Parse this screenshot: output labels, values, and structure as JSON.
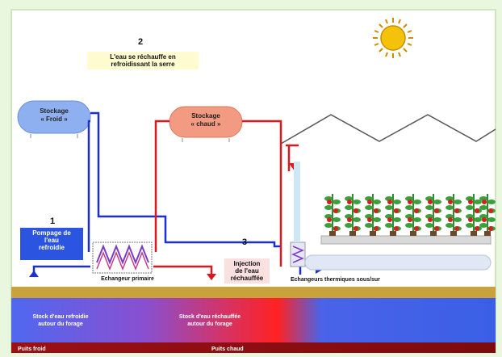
{
  "steps": {
    "one": {
      "number": "1",
      "text_line1": "Pompage de",
      "text_line2": "l'eau",
      "text_line3": "refroidie"
    },
    "two": {
      "number": "2",
      "text_line1": "L'eau se réchauffe en",
      "text_line2": "refroidissant  la serre"
    },
    "three": {
      "number": "3",
      "text_line1": "Injection",
      "text_line2": "de l'eau",
      "text_line3": "réchauffée"
    }
  },
  "tanks": {
    "cold": {
      "line1": "Stockage",
      "line2": "« Froid »"
    },
    "hot": {
      "line1": "Stockage",
      "line2": "« chaud »"
    }
  },
  "labels": {
    "primary_exchanger": "Echangeur primaire",
    "solar_exchangers": "Echangeurs thermiques sous/sur",
    "cold_stock_line1": "Stock d'eau refroidie",
    "cold_stock_line2": "autour du forage",
    "hot_stock_line1": "Stock d'eau réchauffée",
    "hot_stock_line2": "autour du forage",
    "cold_well": "Puits froid",
    "hot_well": "Puits chaud"
  },
  "colors": {
    "cold_pipe": "#1b2fd6",
    "hot_pipe": "#e0161d",
    "cold_tank": "#8fb0f0",
    "hot_tank": "#f39a83",
    "ground": "#c9a23c",
    "aquifer": "#3b63e6",
    "deep_layer": "#8e0d10"
  },
  "icons": [
    "sun-icon",
    "tomato-plant-icon",
    "arrow-icon",
    "heat-exchanger-icon"
  ]
}
